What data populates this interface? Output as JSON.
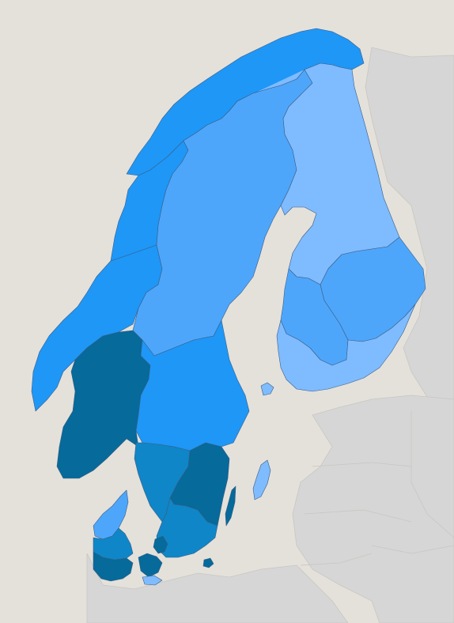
{
  "colors": {
    "sea": "#e4e1db",
    "neighbor_land": "#d6d6d6",
    "neighbor_border": "#c9c6c1",
    "region_border": "#3a5f86",
    "shade_lightest": "#7fbbff",
    "shade_light": "#4ea6fb",
    "shade_medium": "#1e97f7",
    "shade_dark": "#0f86c7",
    "shade_darkest": "#066a9a"
  },
  "regions": [
    {
      "name": "northern-norway",
      "shade": "shade_medium"
    },
    {
      "name": "norrland-sweden",
      "shade": "shade_light"
    },
    {
      "name": "trondelag-norway",
      "shade": "shade_medium"
    },
    {
      "name": "western-norway",
      "shade": "shade_medium"
    },
    {
      "name": "eastern-southern-norway",
      "shade": "shade_darkest"
    },
    {
      "name": "central-sweden",
      "shade": "shade_medium"
    },
    {
      "name": "smaland-sweden",
      "shade": "shade_dark"
    },
    {
      "name": "east-southern-sweden",
      "shade": "shade_darkest"
    },
    {
      "name": "south-sweden",
      "shade": "shade_dark"
    },
    {
      "name": "gotland",
      "shade": "shade_lightest"
    },
    {
      "name": "oland",
      "shade": "shade_darkest"
    },
    {
      "name": "bornholm",
      "shade": "shade_darkest"
    },
    {
      "name": "northern-finland",
      "shade": "shade_lightest"
    },
    {
      "name": "western-finland",
      "shade": "shade_light"
    },
    {
      "name": "eastern-finland",
      "shade": "shade_light"
    },
    {
      "name": "southern-finland",
      "shade": "shade_lightest"
    },
    {
      "name": "aland-islands",
      "shade": "shade_lightest"
    },
    {
      "name": "north-jutland",
      "shade": "shade_light"
    },
    {
      "name": "central-jutland",
      "shade": "shade_dark"
    },
    {
      "name": "south-denmark",
      "shade": "shade_darkest"
    },
    {
      "name": "zealand",
      "shade": "shade_darkest"
    },
    {
      "name": "capital-region-denmark",
      "shade": "shade_darkest"
    },
    {
      "name": "lolland-falster",
      "shade": "shade_lightest"
    }
  ]
}
